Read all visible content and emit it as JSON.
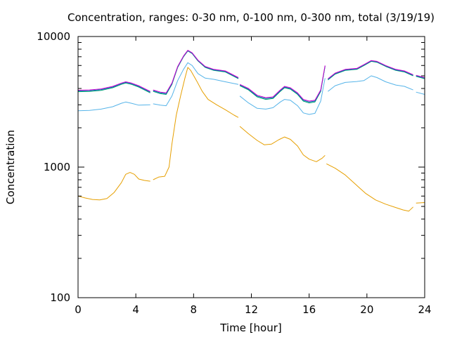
{
  "chart_data": {
    "type": "line",
    "title": "Concentration, ranges: 0-30 nm, 0-100 nm, 0-300 nm, total (3/19/19)",
    "xlabel": "Time [hour]",
    "ylabel": "Concentration",
    "xlim": [
      0,
      24
    ],
    "ylim": [
      100,
      10000
    ],
    "yscale": "log",
    "grid": false,
    "legend": "none",
    "x_ticks": [
      0,
      4,
      8,
      12,
      16,
      20,
      24
    ],
    "x_tick_labels": [
      "0",
      "4",
      "8",
      "12",
      "16",
      "20",
      "24"
    ],
    "y_ticks": [
      100,
      1000,
      10000
    ],
    "y_tick_labels": [
      "100",
      "1000",
      "10000"
    ],
    "series": [
      {
        "color": "#e69f00",
        "segments": [
          [
            [
              0,
              600
            ],
            [
              0.5,
              580
            ],
            [
              1,
              565
            ],
            [
              1.5,
              560
            ],
            [
              2,
              575
            ],
            [
              2.5,
              640
            ],
            [
              3,
              760
            ],
            [
              3.3,
              880
            ],
            [
              3.6,
              910
            ],
            [
              3.9,
              880
            ],
            [
              4.2,
              810
            ],
            [
              4.6,
              790
            ],
            [
              5,
              780
            ]
          ],
          [
            [
              5.2,
              800
            ],
            [
              5.6,
              840
            ],
            [
              6,
              850
            ],
            [
              6.3,
              1000
            ],
            [
              6.5,
              1500
            ],
            [
              6.8,
              2500
            ],
            [
              7.1,
              3500
            ],
            [
              7.4,
              4800
            ],
            [
              7.6,
              5800
            ],
            [
              7.8,
              5500
            ],
            [
              8.2,
              4600
            ],
            [
              8.6,
              3800
            ],
            [
              9,
              3300
            ],
            [
              9.6,
              3000
            ],
            [
              10.2,
              2750
            ],
            [
              10.8,
              2500
            ],
            [
              11.1,
              2400
            ]
          ],
          [
            [
              11.2,
              2050
            ],
            [
              11.8,
              1800
            ],
            [
              12.4,
              1600
            ],
            [
              12.9,
              1480
            ],
            [
              13.4,
              1500
            ],
            [
              13.9,
              1620
            ],
            [
              14.3,
              1700
            ],
            [
              14.7,
              1630
            ],
            [
              15.2,
              1450
            ],
            [
              15.6,
              1240
            ],
            [
              16,
              1150
            ],
            [
              16.5,
              1100
            ],
            [
              16.9,
              1170
            ],
            [
              17.1,
              1230
            ]
          ],
          [
            [
              17.2,
              1060
            ],
            [
              17.8,
              980
            ],
            [
              18.5,
              870
            ],
            [
              19.2,
              740
            ],
            [
              19.9,
              630
            ],
            [
              20.6,
              560
            ],
            [
              21.3,
              520
            ],
            [
              22,
              490
            ],
            [
              22.5,
              470
            ],
            [
              22.9,
              460
            ],
            [
              23.2,
              495
            ]
          ],
          [
            [
              23.4,
              530
            ],
            [
              24,
              535
            ]
          ]
        ]
      },
      {
        "color": "#56b4e9",
        "segments": [
          [
            [
              0,
              2700
            ],
            [
              0.8,
              2720
            ],
            [
              1.6,
              2780
            ],
            [
              2.4,
              2900
            ],
            [
              3,
              3080
            ],
            [
              3.3,
              3150
            ],
            [
              3.7,
              3080
            ],
            [
              4.2,
              2980
            ],
            [
              5,
              3000
            ]
          ],
          [
            [
              5.2,
              3050
            ],
            [
              5.7,
              2980
            ],
            [
              6.1,
              2950
            ],
            [
              6.5,
              3500
            ],
            [
              6.9,
              4600
            ],
            [
              7.3,
              5600
            ],
            [
              7.6,
              6300
            ],
            [
              7.9,
              6000
            ],
            [
              8.3,
              5200
            ],
            [
              8.8,
              4800
            ],
            [
              9.4,
              4700
            ],
            [
              10.2,
              4500
            ],
            [
              11.1,
              4300
            ]
          ],
          [
            [
              11.2,
              3500
            ],
            [
              11.8,
              3100
            ],
            [
              12.4,
              2820
            ],
            [
              13,
              2780
            ],
            [
              13.5,
              2850
            ],
            [
              14,
              3150
            ],
            [
              14.3,
              3300
            ],
            [
              14.7,
              3250
            ],
            [
              15.2,
              2950
            ],
            [
              15.6,
              2600
            ],
            [
              16,
              2530
            ],
            [
              16.4,
              2580
            ],
            [
              16.8,
              3200
            ],
            [
              17.1,
              4800
            ]
          ],
          [
            [
              17.3,
              3800
            ],
            [
              17.8,
              4200
            ],
            [
              18.5,
              4450
            ],
            [
              19.3,
              4520
            ],
            [
              19.8,
              4600
            ],
            [
              20.3,
              5000
            ],
            [
              20.7,
              4850
            ],
            [
              21.3,
              4500
            ],
            [
              22,
              4250
            ],
            [
              22.6,
              4150
            ],
            [
              23.2,
              3900
            ]
          ],
          [
            [
              23.4,
              3750
            ],
            [
              24,
              3600
            ]
          ]
        ]
      },
      {
        "color": "#009e73",
        "segments": [
          [
            [
              0,
              3780
            ],
            [
              0.8,
              3800
            ],
            [
              1.6,
              3870
            ],
            [
              2.4,
              4050
            ],
            [
              3,
              4300
            ],
            [
              3.3,
              4400
            ],
            [
              3.7,
              4300
            ],
            [
              4.2,
              4100
            ],
            [
              5,
              3700
            ]
          ],
          [
            [
              5.2,
              3800
            ],
            [
              5.7,
              3650
            ],
            [
              6.1,
              3600
            ],
            [
              6.5,
              4300
            ],
            [
              6.9,
              5800
            ],
            [
              7.3,
              7000
            ],
            [
              7.6,
              7750
            ],
            [
              7.9,
              7400
            ],
            [
              8.3,
              6500
            ],
            [
              8.8,
              5800
            ],
            [
              9.4,
              5500
            ],
            [
              10.2,
              5350
            ],
            [
              11.1,
              4750
            ]
          ],
          [
            [
              11.2,
              4200
            ],
            [
              11.8,
              3900
            ],
            [
              12.4,
              3450
            ],
            [
              13,
              3300
            ],
            [
              13.5,
              3350
            ],
            [
              14,
              3800
            ],
            [
              14.3,
              4050
            ],
            [
              14.7,
              3950
            ],
            [
              15.2,
              3600
            ],
            [
              15.6,
              3200
            ],
            [
              16,
              3100
            ],
            [
              16.4,
              3150
            ],
            [
              16.8,
              3800
            ],
            [
              17.1,
              5900
            ]
          ],
          [
            [
              17.3,
              4650
            ],
            [
              17.8,
              5150
            ],
            [
              18.5,
              5500
            ],
            [
              19.3,
              5600
            ],
            [
              19.8,
              6000
            ],
            [
              20.3,
              6450
            ],
            [
              20.7,
              6350
            ],
            [
              21.3,
              5900
            ],
            [
              22,
              5500
            ],
            [
              22.6,
              5350
            ],
            [
              23.2,
              5000
            ]
          ],
          [
            [
              23.4,
              4950
            ],
            [
              24,
              4750
            ]
          ]
        ]
      },
      {
        "color": "#0072b2",
        "segments": [
          [
            [
              0,
              3830
            ],
            [
              0.8,
              3850
            ],
            [
              1.6,
              3920
            ],
            [
              2.4,
              4100
            ],
            [
              3,
              4350
            ],
            [
              3.3,
              4450
            ],
            [
              3.7,
              4350
            ],
            [
              4.2,
              4150
            ],
            [
              5,
              3750
            ]
          ],
          [
            [
              5.2,
              3850
            ],
            [
              5.7,
              3700
            ],
            [
              6.1,
              3650
            ],
            [
              6.5,
              4350
            ],
            [
              6.9,
              5850
            ],
            [
              7.3,
              7050
            ],
            [
              7.6,
              7800
            ],
            [
              7.9,
              7450
            ],
            [
              8.3,
              6550
            ],
            [
              8.8,
              5850
            ],
            [
              9.4,
              5550
            ],
            [
              10.2,
              5400
            ],
            [
              11.1,
              4800
            ]
          ],
          [
            [
              11.2,
              4250
            ],
            [
              11.8,
              3950
            ],
            [
              12.4,
              3500
            ],
            [
              13,
              3350
            ],
            [
              13.5,
              3400
            ],
            [
              14,
              3850
            ],
            [
              14.3,
              4100
            ],
            [
              14.7,
              4000
            ],
            [
              15.2,
              3650
            ],
            [
              15.6,
              3250
            ],
            [
              16,
              3150
            ],
            [
              16.4,
              3200
            ],
            [
              16.8,
              3850
            ],
            [
              17.1,
              5950
            ]
          ],
          [
            [
              17.3,
              4700
            ],
            [
              17.8,
              5200
            ],
            [
              18.5,
              5550
            ],
            [
              19.3,
              5650
            ],
            [
              19.8,
              6050
            ],
            [
              20.3,
              6500
            ],
            [
              20.7,
              6400
            ],
            [
              21.3,
              5950
            ],
            [
              22,
              5550
            ],
            [
              22.6,
              5400
            ],
            [
              23.2,
              5050
            ]
          ],
          [
            [
              23.4,
              5000
            ],
            [
              24,
              4800
            ]
          ]
        ]
      },
      {
        "color": "#d000d0",
        "segments": [
          [
            [
              0,
              3880
            ],
            [
              0.8,
              3900
            ],
            [
              1.6,
              3970
            ],
            [
              2.4,
              4150
            ],
            [
              3,
              4400
            ],
            [
              3.3,
              4500
            ],
            [
              3.7,
              4400
            ],
            [
              4.2,
              4200
            ],
            [
              5,
              3800
            ]
          ],
          [
            [
              5.2,
              3900
            ],
            [
              5.7,
              3750
            ],
            [
              6.1,
              3700
            ],
            [
              6.5,
              4400
            ],
            [
              6.9,
              5900
            ],
            [
              7.3,
              7100
            ],
            [
              7.6,
              7850
            ],
            [
              7.9,
              7500
            ],
            [
              8.3,
              6600
            ],
            [
              8.8,
              5900
            ],
            [
              9.4,
              5600
            ],
            [
              10.2,
              5450
            ],
            [
              11.1,
              4850
            ]
          ],
          [
            [
              11.2,
              4300
            ],
            [
              11.8,
              4000
            ],
            [
              12.4,
              3550
            ],
            [
              13,
              3400
            ],
            [
              13.5,
              3450
            ],
            [
              14,
              3900
            ],
            [
              14.3,
              4150
            ],
            [
              14.7,
              4050
            ],
            [
              15.2,
              3700
            ],
            [
              15.6,
              3300
            ],
            [
              16,
              3200
            ],
            [
              16.4,
              3250
            ],
            [
              16.8,
              3900
            ],
            [
              17.1,
              6000
            ]
          ],
          [
            [
              17.3,
              4750
            ],
            [
              17.8,
              5250
            ],
            [
              18.5,
              5600
            ],
            [
              19.3,
              5700
            ],
            [
              19.8,
              6100
            ],
            [
              20.3,
              6550
            ],
            [
              20.7,
              6450
            ],
            [
              21.3,
              6000
            ],
            [
              22,
              5600
            ],
            [
              22.6,
              5450
            ],
            [
              23.2,
              5100
            ]
          ],
          [
            [
              23.4,
              5050
            ],
            [
              24,
              4850
            ]
          ]
        ]
      }
    ]
  }
}
